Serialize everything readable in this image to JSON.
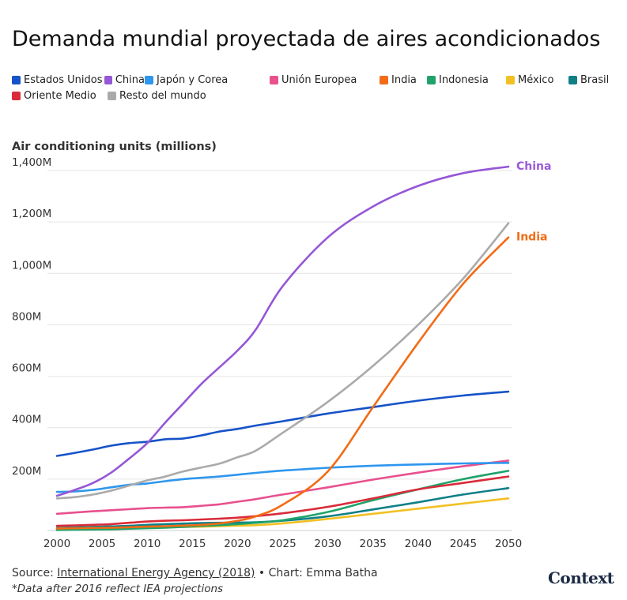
{
  "chart_data": {
    "type": "line",
    "title": "Demanda mundial proyectada de aires acondicionados",
    "ylabel": "Air conditioning units (millions)",
    "xlim": [
      2000,
      2050
    ],
    "ylim": [
      0,
      1400
    ],
    "x_ticks": [
      "2000",
      "2005",
      "2010",
      "2015",
      "2020",
      "2025",
      "2030",
      "2035",
      "2040",
      "2045",
      "2050"
    ],
    "y_ticks": [
      {
        "value": 200,
        "label": "200M"
      },
      {
        "value": 400,
        "label": "400M"
      },
      {
        "value": 600,
        "label": "600M"
      },
      {
        "value": 800,
        "label": "800M"
      },
      {
        "value": 1000,
        "label": "1,000M"
      },
      {
        "value": 1200,
        "label": "1,200M"
      },
      {
        "value": 1400,
        "label": "1,400M"
      }
    ],
    "grid": "horizontal",
    "legend_position": "top",
    "x": [
      2000,
      2002,
      2004,
      2006,
      2008,
      2010,
      2012,
      2014,
      2016,
      2018,
      2020,
      2022,
      2025,
      2030,
      2035,
      2040,
      2045,
      2050
    ],
    "series": [
      {
        "name": "Estados Unidos",
        "color": "#1652c8",
        "values": [
          290,
          302,
          315,
          330,
          340,
          345,
          355,
          358,
          370,
          385,
          395,
          408,
          425,
          455,
          480,
          505,
          525,
          540
        ]
      },
      {
        "name": "China",
        "color": "#9557d6",
        "values": [
          135,
          158,
          185,
          225,
          280,
          340,
          420,
          495,
          570,
          635,
          700,
          780,
          950,
          1140,
          1260,
          1340,
          1390,
          1415
        ]
      },
      {
        "name": "Japón y Corea",
        "color": "#2e96ee",
        "values": [
          150,
          152,
          158,
          168,
          178,
          183,
          192,
          200,
          205,
          210,
          217,
          224,
          233,
          244,
          252,
          257,
          261,
          263
        ]
      },
      {
        "name": "Unión Europea",
        "color": "#e8508e",
        "values": [
          65,
          70,
          75,
          79,
          83,
          87,
          89,
          91,
          96,
          102,
          112,
          122,
          140,
          168,
          198,
          225,
          250,
          272
        ]
      },
      {
        "name": "India",
        "color": "#f26b16",
        "values": [
          8,
          9,
          10,
          11,
          13,
          15,
          17,
          19,
          22,
          28,
          38,
          55,
          100,
          230,
          480,
          730,
          960,
          1140
        ]
      },
      {
        "name": "Indonesia",
        "color": "#1fa36a",
        "values": [
          2,
          3,
          4,
          5,
          7,
          9,
          11,
          14,
          18,
          21,
          25,
          30,
          40,
          72,
          118,
          160,
          200,
          232
        ]
      },
      {
        "name": "México",
        "color": "#f2c024",
        "values": [
          5,
          6,
          7,
          8,
          9,
          11,
          12,
          14,
          15,
          17,
          19,
          21,
          28,
          45,
          65,
          85,
          105,
          125
        ]
      },
      {
        "name": "Brasil",
        "color": "#0f7f86",
        "values": [
          10,
          12,
          14,
          16,
          18,
          22,
          25,
          27,
          29,
          30,
          31,
          32,
          38,
          55,
          82,
          110,
          140,
          165
        ]
      },
      {
        "name": "Oriente Medio",
        "color": "#d92b3a",
        "values": [
          18,
          20,
          22,
          25,
          30,
          35,
          38,
          40,
          43,
          46,
          50,
          56,
          67,
          92,
          125,
          160,
          185,
          210
        ]
      },
      {
        "name": "Resto del mundo",
        "color": "#aaaaaa",
        "values": [
          125,
          130,
          140,
          155,
          175,
          195,
          210,
          230,
          245,
          260,
          285,
          310,
          380,
          500,
          640,
          800,
          980,
          1195
        ]
      }
    ],
    "end_labels": [
      {
        "series": "China",
        "text": "China",
        "color": "#9b59d8"
      },
      {
        "series": "India",
        "text": "India",
        "color": "#f26b16"
      }
    ]
  },
  "legend_rows": [
    [
      "Estados Unidos",
      "China",
      "Japón y Corea",
      "Unión Europea",
      "India",
      "Indonesia",
      "México",
      "Brasil"
    ],
    [
      "Oriente Medio",
      "Resto del mundo"
    ]
  ],
  "footer": {
    "source_prefix": "Source: ",
    "source_link": "International Energy Agency (2018)",
    "credit": " • Chart: Emma Batha",
    "note": "*Data after 2016 reflect IEA projections"
  },
  "logo_text": "Context"
}
